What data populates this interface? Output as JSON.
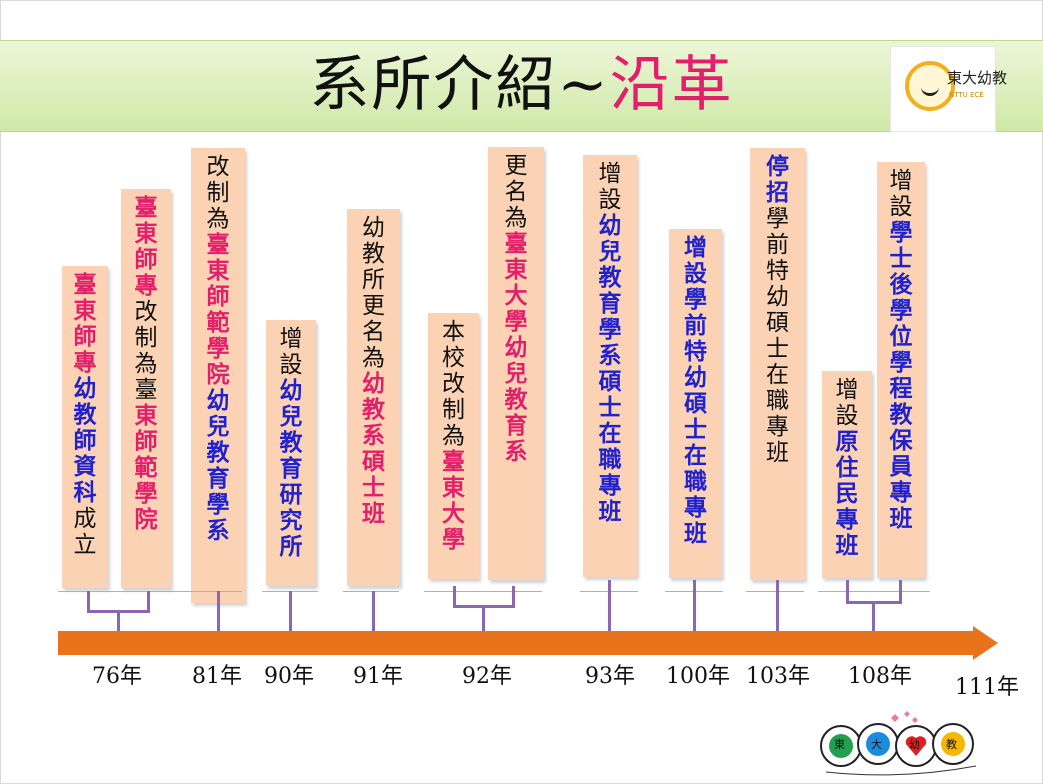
{
  "slide": {
    "title_main": "系所介紹~",
    "title_accent": "沿革",
    "logo_text": "東大幼教",
    "logo_sub": "NTTU ECE"
  },
  "colors": {
    "card_bg": "#fbd3b4",
    "pink": "#e21f6a",
    "blue": "#2222cc",
    "arrow": "#e8731a",
    "connector": "#8a67b0",
    "title_band": "#d7edb3"
  },
  "timeline": {
    "final_label": "111年",
    "years": [
      "76年",
      "81年",
      "90年",
      "91年",
      "92年",
      "93年",
      "100年",
      "103年",
      "108年"
    ]
  },
  "cards": [
    {
      "year": "76年",
      "segments": [
        {
          "t": "臺東師專",
          "c": "p"
        },
        {
          "t": "幼教師資科",
          "c": "b"
        },
        {
          "t": "成立",
          "c": "k"
        }
      ]
    },
    {
      "year": "76年",
      "segments": [
        {
          "t": "臺東師專",
          "c": "p"
        },
        {
          "t": "改制為臺",
          "c": "k"
        },
        {
          "t": "東師範學院",
          "c": "p"
        }
      ]
    },
    {
      "year": "81年",
      "segments": [
        {
          "t": "改制為",
          "c": "k"
        },
        {
          "t": "臺東師範學院",
          "c": "p"
        },
        {
          "t": "幼兒教育學系",
          "c": "b"
        }
      ]
    },
    {
      "year": "90年",
      "segments": [
        {
          "t": "增設",
          "c": "k"
        },
        {
          "t": "幼兒教育研究所",
          "c": "b"
        }
      ]
    },
    {
      "year": "91年",
      "segments": [
        {
          "t": "幼教所更名為",
          "c": "k"
        },
        {
          "t": "幼教系碩士班",
          "c": "p"
        }
      ]
    },
    {
      "year": "92年",
      "segments": [
        {
          "t": "本校改制為",
          "c": "k"
        },
        {
          "t": "臺東大學",
          "c": "p"
        }
      ]
    },
    {
      "year": "92年",
      "segments": [
        {
          "t": "更名為",
          "c": "k"
        },
        {
          "t": "臺東大學幼兒教育系",
          "c": "p"
        }
      ]
    },
    {
      "year": "93年",
      "segments": [
        {
          "t": "增設",
          "c": "k"
        },
        {
          "t": "幼兒教育學系碩士在職專班",
          "c": "b"
        }
      ]
    },
    {
      "year": "100年",
      "segments": [
        {
          "t": "增設學前特幼碩士在職專班",
          "c": "b"
        }
      ]
    },
    {
      "year": "103年",
      "segments": [
        {
          "t": "停招",
          "c": "b"
        },
        {
          "t": "學前特幼碩士在職專班",
          "c": "k"
        }
      ]
    },
    {
      "year": "108年",
      "segments": [
        {
          "t": "增設",
          "c": "k"
        },
        {
          "t": "原住民專班",
          "c": "b"
        }
      ]
    },
    {
      "year": "108年",
      "segments": [
        {
          "t": "增設",
          "c": "k"
        },
        {
          "t": "學士後學位學程教保員專班",
          "c": "b"
        }
      ]
    }
  ],
  "footer": {
    "logo_chars": [
      "東",
      "大",
      "幼",
      "教"
    ]
  }
}
